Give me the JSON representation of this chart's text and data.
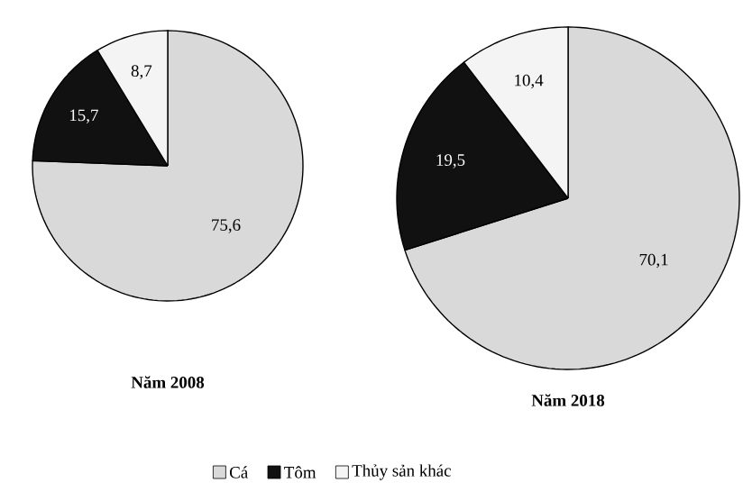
{
  "chart_data": [
    {
      "type": "pie",
      "title": "Năm 2008",
      "categories": [
        "Cá",
        "Tôm",
        "Thủy sản khác"
      ],
      "values": [
        75.6,
        15.7,
        8.7
      ],
      "colors": [
        "#d9d9d9",
        "#111111",
        "#f4f4f4"
      ],
      "value_labels": [
        "75,6",
        "15,7",
        "8,7"
      ],
      "legend": "bottom"
    },
    {
      "type": "pie",
      "title": "Năm 2018",
      "categories": [
        null,
        null,
        null
      ],
      "values": [
        70.1,
        19.5,
        10.4
      ],
      "colors": [
        "#d9d9d9",
        "#111111",
        "#f4f4f4"
      ],
      "value_labels": [
        "70,1",
        "19,5",
        "10,4"
      ]
    }
  ]
}
